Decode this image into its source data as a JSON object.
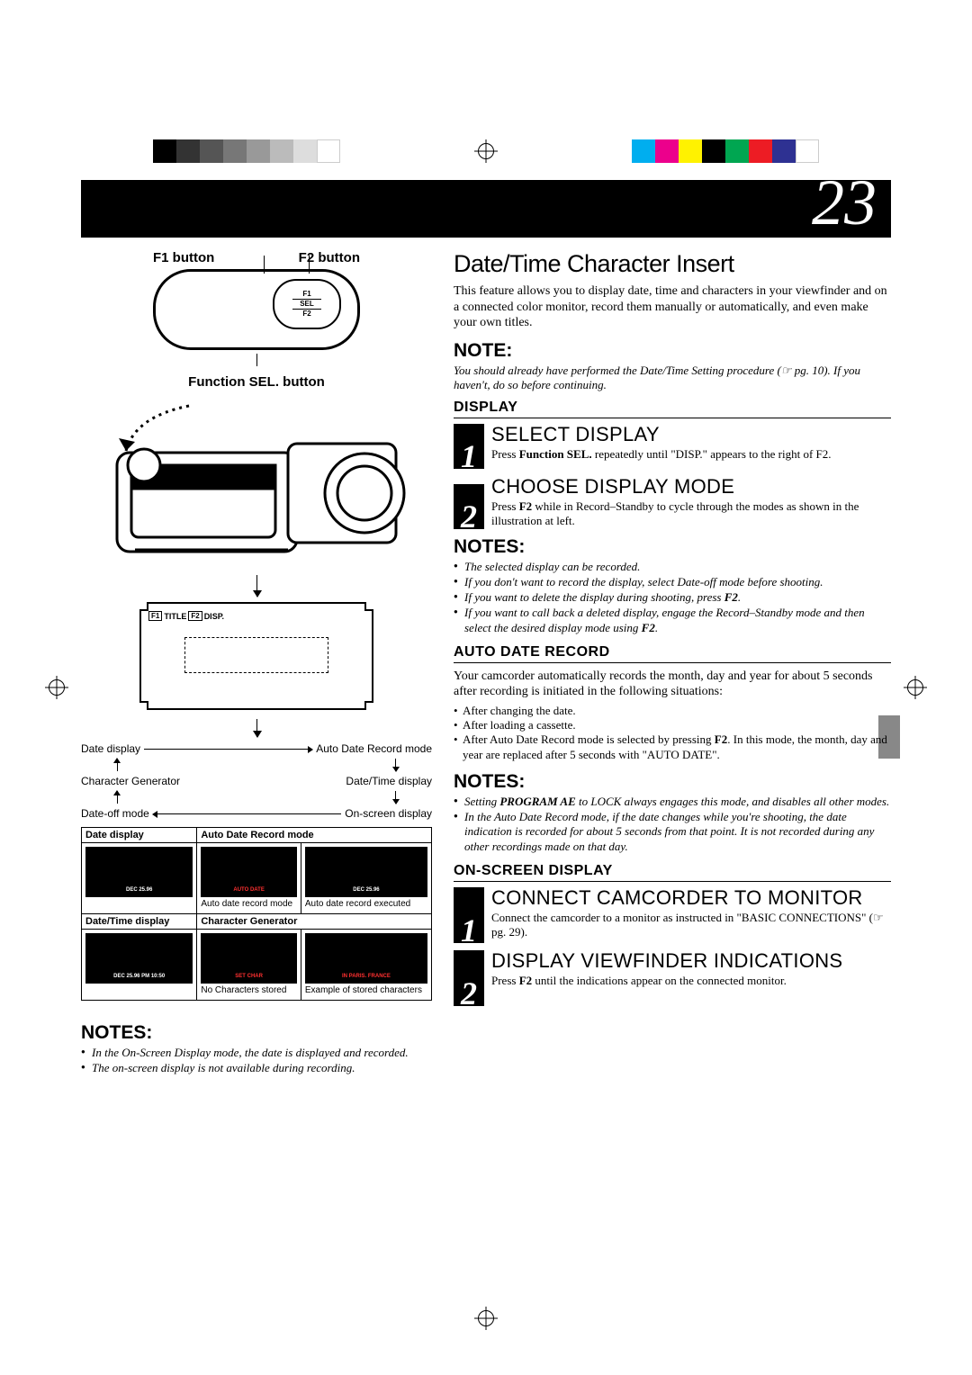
{
  "page_number": "23",
  "colorbars": {
    "left": [
      "#000000",
      "#333333",
      "#555555",
      "#777777",
      "#999999",
      "#bbbbbb",
      "#dddddd",
      "#ffffff"
    ],
    "right": [
      "#00aeef",
      "#ec008c",
      "#fff200",
      "#000000",
      "#00a651",
      "#ed1c24",
      "#2e3192",
      "#ffffff"
    ]
  },
  "left": {
    "f1_label": "F1 button",
    "f2_label": "F2 button",
    "sel_label": "Function SEL. button",
    "remote_keys": {
      "f1": "F1",
      "sel": "SEL",
      "f2": "F2"
    },
    "screen_title": {
      "k1": "F1",
      "t1": "TITLE",
      "k2": "F2",
      "t2": "DISP."
    },
    "flow": {
      "date_display": "Date display",
      "auto_date": "Auto Date Record mode",
      "char_gen": "Character Generator",
      "datetime": "Date/Time display",
      "date_off": "Date-off mode",
      "onscreen": "On-screen display"
    },
    "table": {
      "h1": "Date display",
      "h2": "Auto Date Record mode",
      "h3": "Date/Time display",
      "h4": "Character Generator",
      "t1": "DEC 25.96",
      "t2a": "AUTO DATE",
      "t2b": "DEC 25.96",
      "c2a": "Auto date record mode",
      "c2b": "Auto date record executed",
      "t3": "DEC 25.96  PM 10:50",
      "t4a": "SET CHAR",
      "t4b": "IN PARIS. FRANCE",
      "c4a": "No Characters stored",
      "c4b": "Example of stored characters"
    },
    "notes_h": "NOTES:",
    "notes": [
      "In the On-Screen Display mode, the date is displayed and recorded.",
      "The on-screen display is not available during recording."
    ]
  },
  "right": {
    "title": "Date/Time Character Insert",
    "intro": "This feature allows you to display date, time and characters in your viewfinder and on a connected color monitor, record them manually or automatically, and even make your own titles.",
    "note1_h": "NOTE:",
    "note1": "You should already have performed the Date/Time Setting procedure (☞ pg. 10). If you haven't, do so before continuing.",
    "display_h": "DISPLAY",
    "step1_t": "SELECT DISPLAY",
    "step1_b_pre": "Press ",
    "step1_b_bold": "Function SEL.",
    "step1_b_post": " repeatedly until \"DISP.\" appears to the right of F2.",
    "step2_t": "CHOOSE DISPLAY MODE",
    "step2_b_pre": "Press ",
    "step2_b_bold": "F2",
    "step2_b_post": " while in Record–Standby to cycle through the modes as shown in the illustration at left.",
    "notes2_h": "NOTES:",
    "notes2": [
      "The selected display can be recorded.",
      "If you don't want to record the display, select Date-off mode before shooting.",
      "If you want to delete the display during shooting, press <b>F2</b>.",
      "If you want to call back a deleted display, engage the Record–Standby mode and then select the desired display mode using <b>F2</b>."
    ],
    "auto_h": "AUTO DATE RECORD",
    "auto_body": "Your camcorder automatically records the month, day and year for about 5 seconds after recording is initiated in the following situations:",
    "auto_list": [
      "After changing the date.",
      "After loading a cassette.",
      "After Auto Date Record mode is selected by pressing <b>F2</b>. In this mode, the month, day and year are replaced after 5 seconds with \"AUTO DATE\"."
    ],
    "notes3_h": "NOTES:",
    "notes3": [
      "Setting <b>PROGRAM AE</b> to LOCK always engages this mode, and disables all other modes.",
      "In the Auto Date Record mode, if the date changes while you're shooting, the date indication is recorded for about 5 seconds from that point. It is not recorded during any other recordings made on that day."
    ],
    "osd_h": "ON-SCREEN DISPLAY",
    "step3_t": "CONNECT CAMCORDER TO MONITOR",
    "step3_b": "Connect the camcorder to a monitor as instructed in \"BASIC CONNECTIONS\" (☞ pg. 29).",
    "step4_t": "DISPLAY VIEWFINDER INDICATIONS",
    "step4_b_pre": "Press ",
    "step4_b_bold": "F2",
    "step4_b_post": " until the indications appear on the connected monitor."
  }
}
